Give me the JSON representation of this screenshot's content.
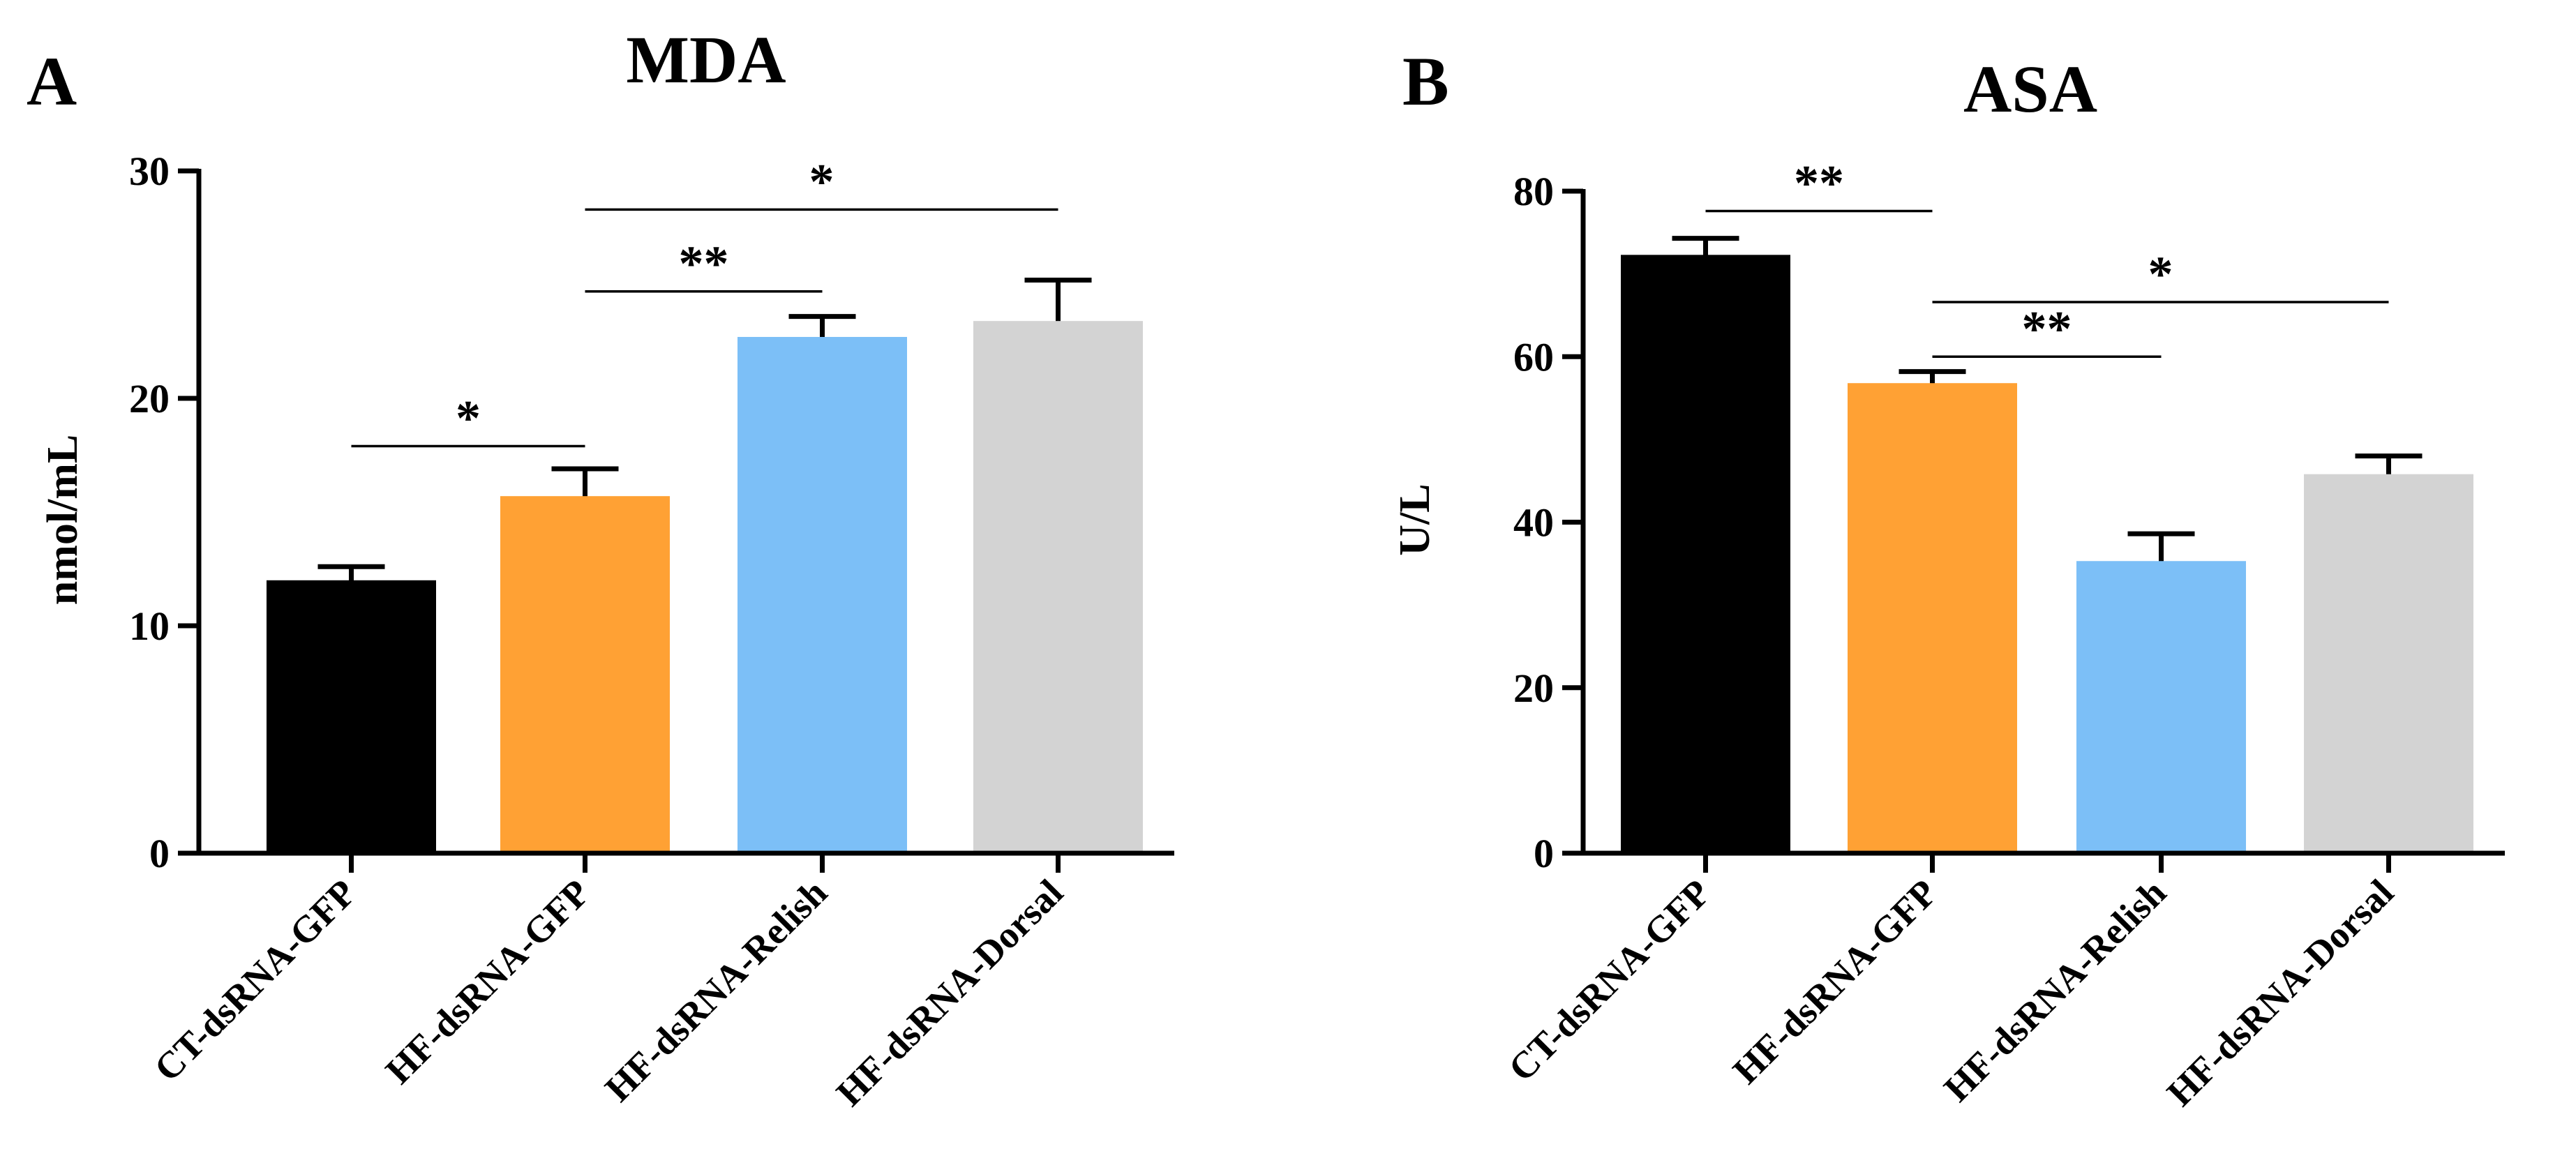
{
  "chart_data": [
    {
      "panel": "A",
      "type": "bar",
      "title": "MDA",
      "ylabel": "nmol/mL",
      "xlabel": "",
      "ylim": [
        0,
        30
      ],
      "yticks": [
        "0",
        "10",
        "20",
        "30"
      ],
      "categories": [
        "CT-dsRNA-GFP",
        "HF-dsRNA-GFP",
        "HF-dsRNA-Relish",
        "HF-dsRNA-Dorsal"
      ],
      "values": [
        12.0,
        15.7,
        22.7,
        23.4
      ],
      "errors": [
        0.6,
        1.2,
        0.9,
        1.8
      ],
      "colors": [
        "#000000",
        "#ffa134",
        "#7cbff7",
        "#d3d3d3"
      ],
      "grid": false,
      "significance": [
        {
          "from": 0,
          "to": 1,
          "label": "*",
          "level": 17.9
        },
        {
          "from": 1,
          "to": 2,
          "label": "**",
          "level": 24.7
        },
        {
          "from": 1,
          "to": 3,
          "label": "*",
          "level": 28.3
        }
      ]
    },
    {
      "panel": "B",
      "type": "bar",
      "title": "ASA",
      "ylabel": "U/L",
      "xlabel": "",
      "ylim": [
        0,
        80
      ],
      "yticks": [
        "0",
        "20",
        "40",
        "60",
        "80"
      ],
      "categories": [
        "CT-dsRNA-GFP",
        "HF-dsRNA-GFP",
        "HF-dsRNA-Relish",
        "HF-dsRNA-Dorsal"
      ],
      "values": [
        72.3,
        56.8,
        35.3,
        45.8
      ],
      "errors": [
        2.0,
        1.4,
        3.3,
        2.2
      ],
      "colors": [
        "#000000",
        "#ffa134",
        "#7cbff7",
        "#d3d3d3"
      ],
      "grid": false,
      "significance": [
        {
          "from": 0,
          "to": 1,
          "label": "**",
          "level": 77.6
        },
        {
          "from": 1,
          "to": 2,
          "label": "**",
          "level": 60.0
        },
        {
          "from": 1,
          "to": 3,
          "label": "*",
          "level": 66.6
        }
      ]
    }
  ]
}
